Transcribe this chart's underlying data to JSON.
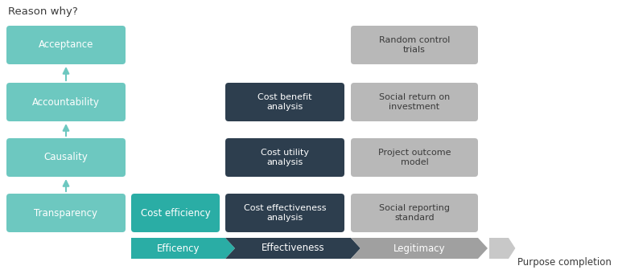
{
  "title_left": "Reason why?",
  "title_right": "Purpose completion",
  "bg_color": "#ffffff",
  "teal_light": "#6dc8c0",
  "teal_dark": "#2aada5",
  "dark_color": "#2d3e4e",
  "gray_med": "#a0a0a0",
  "gray_light": "#b8b8b8",
  "left_boxes": [
    {
      "label": "Acceptance"
    },
    {
      "label": "Accountability"
    },
    {
      "label": "Causality"
    },
    {
      "label": "Transparency"
    }
  ],
  "mid_dark_boxes": [
    {
      "label": "Cost benefit\nanalysis",
      "row": 1
    },
    {
      "label": "Cost utility\nanalysis",
      "row": 2
    },
    {
      "label": "Cost effectiveness\nanalysis",
      "row": 3
    }
  ],
  "mid_teal_box": {
    "label": "Cost efficiency"
  },
  "right_gray_boxes": [
    {
      "label": "Random control\ntrials",
      "row": 0
    },
    {
      "label": "Social return on\ninvestment",
      "row": 1
    },
    {
      "label": "Project outcome\nmodel",
      "row": 2
    },
    {
      "label": "Social reporting\nstandard",
      "row": 3
    }
  ],
  "arrow_labels": [
    "Efficency",
    "Effectiveness",
    "Legitimacy"
  ],
  "arrow_colors": [
    "#2aada5",
    "#2d3e4e",
    "#a0a0a0"
  ]
}
